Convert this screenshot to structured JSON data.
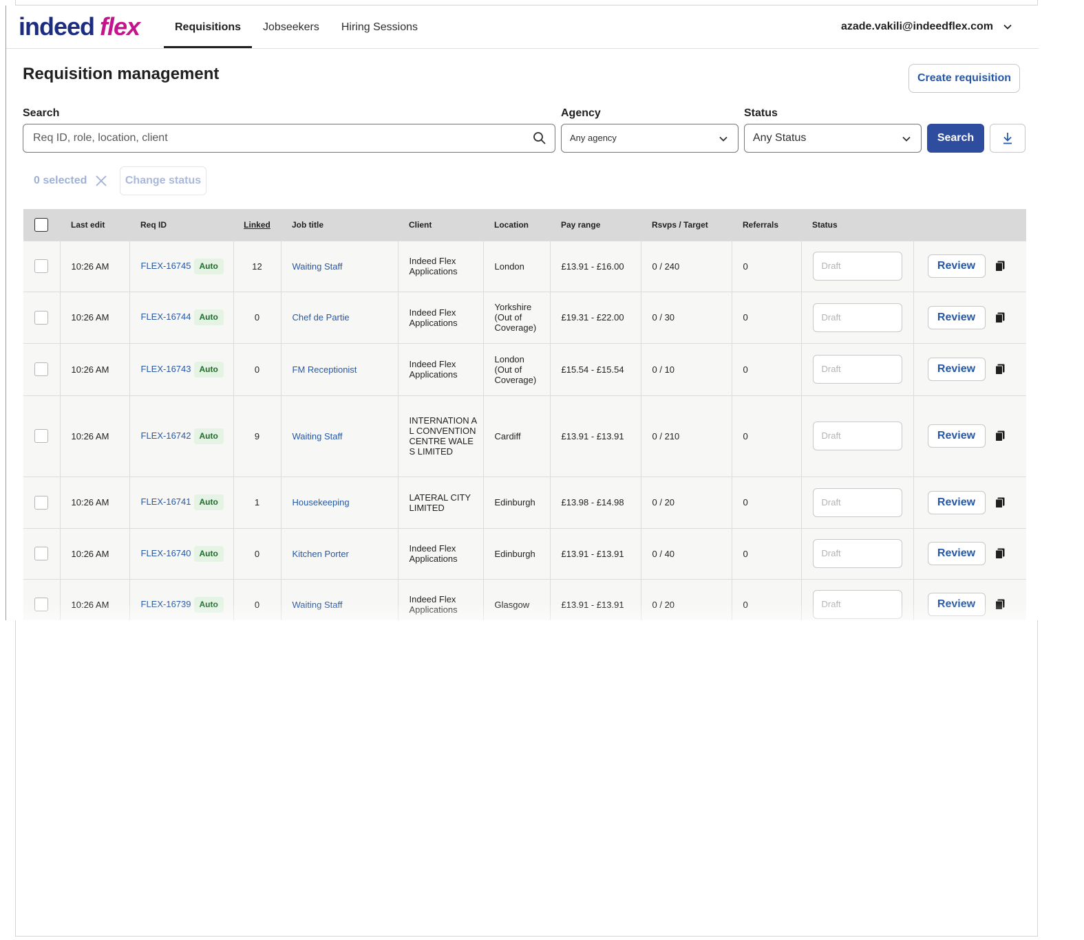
{
  "header": {
    "logo_primary": "indeed",
    "logo_secondary": "flex",
    "nav": [
      {
        "label": "Requisitions",
        "active": true
      },
      {
        "label": "Jobseekers",
        "active": false
      },
      {
        "label": "Hiring Sessions",
        "active": false
      }
    ],
    "user_email": "azade.vakili@indeedflex.com"
  },
  "page": {
    "title": "Requisition management",
    "create_label": "Create requisition"
  },
  "filters": {
    "search_label": "Search",
    "search_placeholder": "Req ID, role, location, client",
    "agency_label": "Agency",
    "agency_value": "Any agency",
    "status_label": "Status",
    "status_value": "Any Status",
    "search_button": "Search"
  },
  "bulk": {
    "selected_text": "0 selected",
    "change_status": "Change status"
  },
  "table": {
    "headers": {
      "last_edit": "Last edit",
      "req_id": "Req ID",
      "linked": "Linked",
      "job_title": "Job title",
      "client": "Client",
      "location": "Location",
      "pay_range": "Pay range",
      "rsvps": "Rsvps / Target",
      "referrals": "Referrals",
      "status": "Status"
    },
    "badge_label": "Auto",
    "status_placeholder": "Draft",
    "review_label": "Review",
    "rows": [
      {
        "time": "10:26 AM",
        "req": "FLEX-16745",
        "linked": "12",
        "job": "Waiting Staff",
        "client": "Indeed Flex Applications",
        "location": "London",
        "pay": "£13.91 - £16.00",
        "rsvps": "0 / 240",
        "referrals": "0"
      },
      {
        "time": "10:26 AM",
        "req": "FLEX-16744",
        "linked": "0",
        "job": "Chef de Partie",
        "client": "Indeed Flex Applications",
        "location": "Yorkshire (Out of Coverage)",
        "pay": "£19.31 - £22.00",
        "rsvps": "0 / 30",
        "referrals": "0"
      },
      {
        "time": "10:26 AM",
        "req": "FLEX-16743",
        "linked": "0",
        "job": "FM Receptionist",
        "client": "Indeed Flex Applications",
        "location": "London (Out of Coverage)",
        "pay": "£15.54 - £15.54",
        "rsvps": "0 / 10",
        "referrals": "0"
      },
      {
        "time": "10:26 AM",
        "req": "FLEX-16742",
        "linked": "9",
        "job": "Waiting Staff",
        "client": "INTERNATION AL CONVENTION CENTRE WALES LIMITED",
        "location": "Cardiff",
        "pay": "£13.91 - £13.91",
        "rsvps": "0 / 210",
        "referrals": "0"
      },
      {
        "time": "10:26 AM",
        "req": "FLEX-16741",
        "linked": "1",
        "job": "Housekeeping",
        "client": "LATERAL CITY LIMITED",
        "location": "Edinburgh",
        "pay": "£13.98 - £14.98",
        "rsvps": "0 / 20",
        "referrals": "0"
      },
      {
        "time": "10:26 AM",
        "req": "FLEX-16740",
        "linked": "0",
        "job": "Kitchen Porter",
        "client": "Indeed Flex Applications",
        "location": "Edinburgh",
        "pay": "£13.91 - £13.91",
        "rsvps": "0 / 40",
        "referrals": "0"
      },
      {
        "time": "10:26 AM",
        "req": "FLEX-16739",
        "linked": "0",
        "job": "Waiting Staff",
        "client": "Indeed Flex Applications",
        "location": "Glasgow",
        "pay": "£13.91 - £13.91",
        "rsvps": "0 / 20",
        "referrals": "0"
      }
    ]
  },
  "colors": {
    "primary": "#2557a7",
    "button_primary": "#2e4d9e",
    "logo_blue": "#1c2d80",
    "logo_pink": "#c4148c",
    "badge_bg": "#e4f3e4",
    "badge_text": "#1e6b2a"
  },
  "icons": {
    "search": "search-icon",
    "chevron": "chevron-down-icon",
    "download": "download-icon",
    "close": "close-icon",
    "copy": "copy-icon"
  }
}
